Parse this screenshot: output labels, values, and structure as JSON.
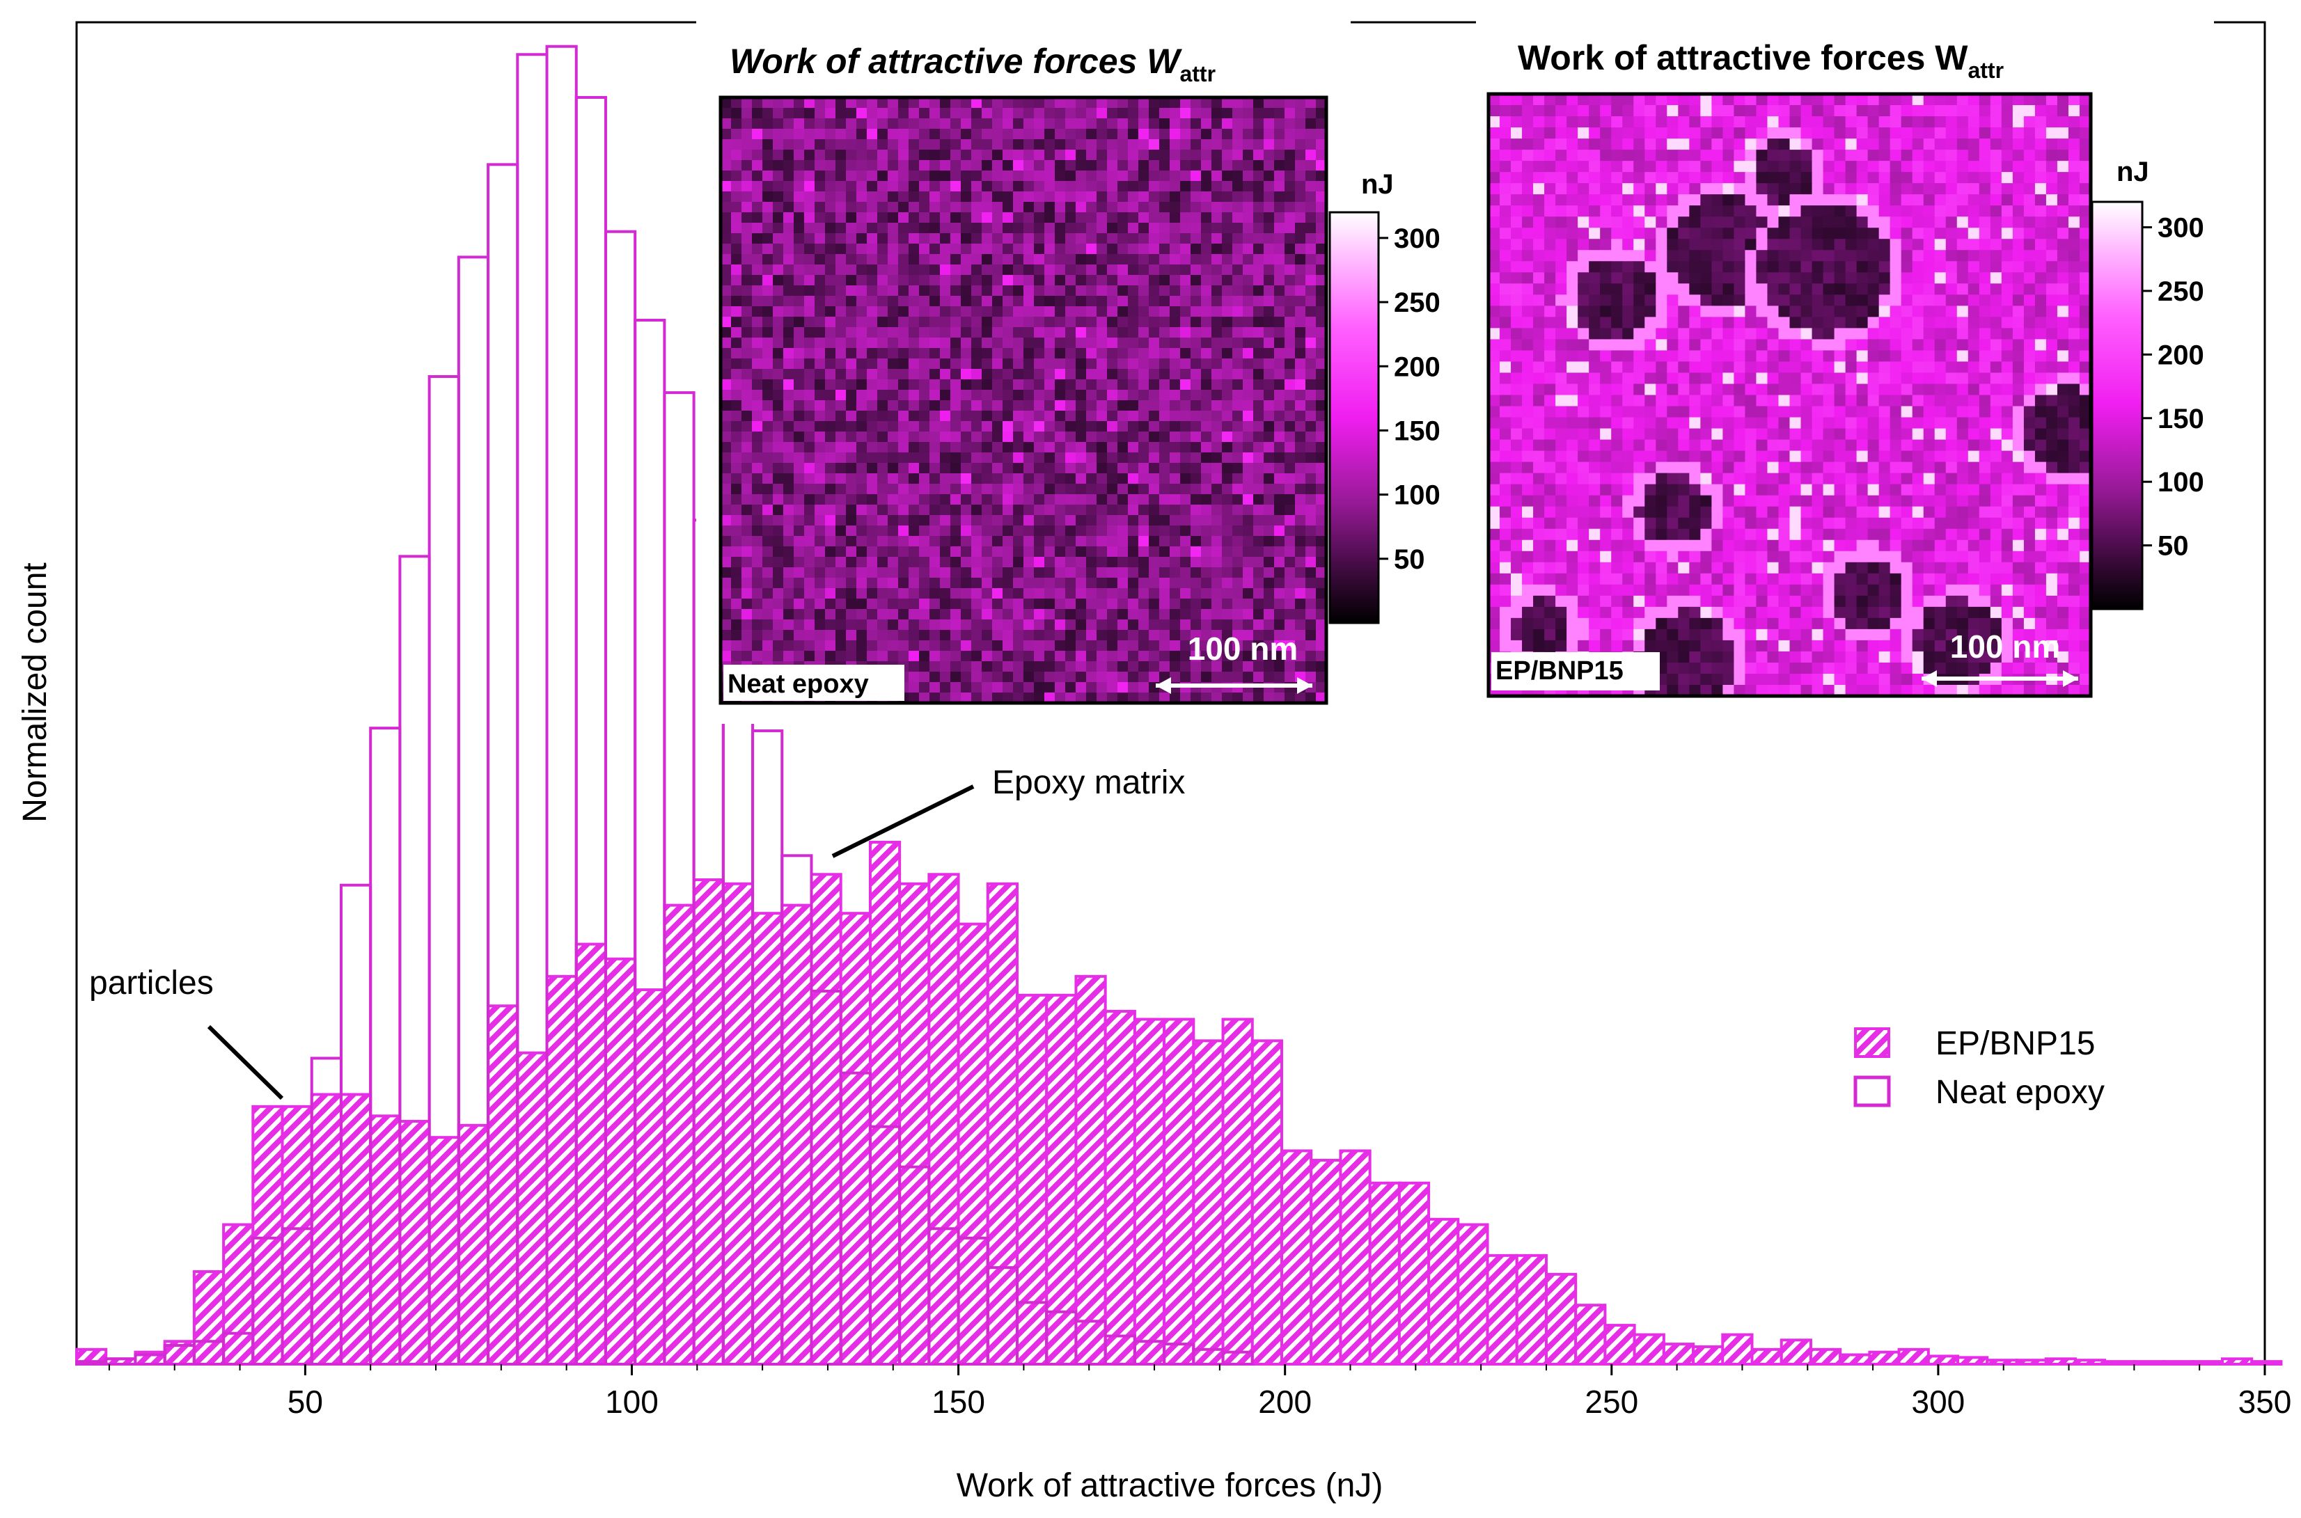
{
  "colors": {
    "accent": "#e62ee6",
    "neat": "#d42ad4",
    "frame": "#000000"
  },
  "chart_data": [
    {
      "type": "bar",
      "subtype": "histogram",
      "xlabel": "Work of attractive forces (nJ)",
      "ylabel": "Normalized count",
      "xlim": [
        15,
        350
      ],
      "ylim": [
        0,
        1
      ],
      "x_ticks": [
        50,
        100,
        150,
        200,
        250,
        300,
        350
      ],
      "y_ticks_shown": false,
      "bin_width": 4.5,
      "legend_position": "right",
      "series": [
        {
          "name": "EP/BNP15",
          "style": "hatched",
          "bin_starts": [
            15,
            19.5,
            24,
            28.5,
            33,
            37.5,
            42,
            46.5,
            51,
            55.5,
            60,
            64.5,
            69,
            73.5,
            78,
            82.5,
            87,
            91.5,
            96,
            100.5,
            105,
            109.5,
            114,
            118.5,
            123,
            127.5,
            132,
            136.5,
            141,
            145.5,
            150,
            154.5,
            159,
            163.5,
            168,
            172.5,
            177,
            181.5,
            186,
            190.5,
            195,
            199.5,
            204,
            208.5,
            213,
            217.5,
            222,
            226.5,
            231,
            235.5,
            240,
            244.5,
            249,
            253.5,
            258,
            262.5,
            267,
            271.5,
            276,
            280.5,
            285,
            289.5,
            294,
            298.5,
            303,
            307.5,
            312,
            316.5,
            321,
            325.5,
            330,
            334.5,
            339,
            343.5,
            348
          ],
          "values": [
            0.011,
            0.004,
            0.009,
            0.017,
            0.069,
            0.104,
            0.192,
            0.192,
            0.201,
            0.201,
            0.185,
            0.181,
            0.169,
            0.178,
            0.267,
            0.232,
            0.289,
            0.313,
            0.302,
            0.279,
            0.342,
            0.361,
            0.358,
            0.336,
            0.342,
            0.365,
            0.336,
            0.389,
            0.358,
            0.365,
            0.328,
            0.358,
            0.275,
            0.275,
            0.289,
            0.263,
            0.257,
            0.257,
            0.241,
            0.257,
            0.241,
            0.159,
            0.152,
            0.159,
            0.135,
            0.135,
            0.108,
            0.104,
            0.081,
            0.081,
            0.067,
            0.044,
            0.029,
            0.022,
            0.015,
            0.013,
            0.022,
            0.011,
            0.018,
            0.011,
            0.007,
            0.009,
            0.011,
            0.006,
            0.005,
            0.003,
            0.003,
            0.004,
            0.003,
            0.002,
            0.002,
            0.002,
            0.002,
            0.004,
            0.002
          ]
        },
        {
          "name": "Neat epoxy",
          "style": "outline",
          "bin_starts": [
            15,
            19.5,
            24,
            28.5,
            33,
            37.5,
            42,
            46.5,
            51,
            55.5,
            60,
            64.5,
            69,
            73.5,
            78,
            82.5,
            87,
            91.5,
            96,
            100.5,
            105,
            109.5,
            114,
            118.5,
            123,
            127.5,
            132,
            136.5,
            141,
            145.5,
            150,
            154.5,
            159,
            163.5,
            168,
            172.5,
            177,
            181.5,
            186,
            190.5
          ],
          "values": [
            0.002,
            0.004,
            0.007,
            0.014,
            0.017,
            0.023,
            0.094,
            0.101,
            0.228,
            0.357,
            0.474,
            0.602,
            0.736,
            0.825,
            0.894,
            0.976,
            0.982,
            0.944,
            0.844,
            0.778,
            0.724,
            0.629,
            0.549,
            0.472,
            0.379,
            0.278,
            0.217,
            0.177,
            0.147,
            0.101,
            0.094,
            0.072,
            0.046,
            0.039,
            0.032,
            0.021,
            0.017,
            0.015,
            0.011,
            0.009
          ]
        }
      ],
      "annotations": [
        "particles",
        "Epoxy matrix"
      ]
    },
    {
      "type": "heatmap",
      "title": "Work of attractive forces W",
      "title_subscript": "attr",
      "label": "Neat epoxy",
      "scale_bar": "100 nm",
      "colorbar_unit": "nJ",
      "colorbar_ticks": [
        50,
        100,
        150,
        200,
        250,
        300
      ],
      "colorbar_range": [
        0,
        320
      ],
      "mean_value": 80
    },
    {
      "type": "heatmap",
      "title": "Work of attractive forces W",
      "title_subscript": "attr",
      "label": "EP/BNP15",
      "scale_bar": "100 nm",
      "colorbar_unit": "nJ",
      "colorbar_ticks": [
        50,
        100,
        150,
        200,
        250,
        300
      ],
      "colorbar_range": [
        0,
        320
      ],
      "mean_value": 150
    }
  ]
}
